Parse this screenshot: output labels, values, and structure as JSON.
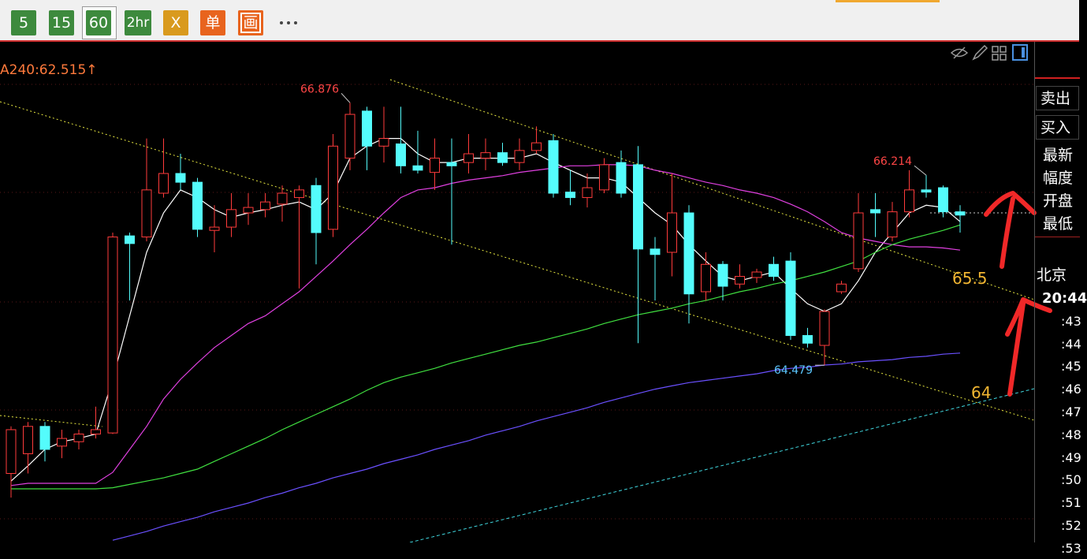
{
  "toolbar": {
    "buttons": [
      "5",
      "15",
      "60",
      "2hr",
      "X",
      "单",
      "画"
    ]
  },
  "indicator_label": "A240:62.515↑",
  "chart_data": {
    "type": "candlestick",
    "open": [
      63.49,
      63.67,
      63.92,
      63.74,
      63.78,
      63.85,
      63.86,
      65.66,
      65.65,
      66.05,
      66.23,
      66.15,
      65.71,
      65.74,
      65.87,
      65.9,
      65.95,
      66.01,
      66.12,
      65.72,
      66.37,
      66.8,
      66.48,
      66.5,
      66.3,
      66.24,
      66.33,
      66.33,
      66.37,
      66.42,
      66.33,
      66.44,
      66.53,
      66.06,
      66.01,
      66.08,
      66.33,
      66.31,
      65.54,
      65.51,
      65.87,
      65.15,
      65.4,
      65.22,
      65.28,
      65.4,
      65.43,
      64.75,
      64.66,
      65.15,
      65.36,
      65.9,
      65.65,
      65.88,
      66.08,
      66.1,
      65.88
    ],
    "high": [
      63.92,
      63.96,
      63.96,
      63.89,
      63.89,
      64.1,
      65.69,
      65.69,
      66.55,
      66.55,
      66.41,
      66.19,
      65.94,
      66.05,
      66.05,
      66.05,
      66.12,
      66.12,
      66.19,
      66.59,
      66.876,
      66.84,
      66.84,
      66.84,
      66.62,
      66.55,
      66.55,
      66.59,
      66.55,
      66.51,
      66.55,
      66.66,
      66.59,
      66.26,
      66.23,
      66.37,
      66.44,
      66.48,
      65.65,
      66.23,
      65.94,
      65.51,
      65.43,
      65.4,
      65.36,
      65.47,
      65.51,
      64.82,
      64.99,
      65.25,
      66.05,
      66.05,
      65.97,
      66.26,
      66.214,
      66.12,
      65.94
    ],
    "low": [
      63.27,
      63.49,
      63.6,
      63.63,
      63.71,
      63.81,
      63.85,
      65.07,
      65.61,
      66.01,
      66.08,
      65.65,
      65.51,
      65.65,
      65.76,
      65.83,
      65.79,
      65.18,
      65.4,
      65.65,
      66.26,
      66.26,
      66.33,
      66.23,
      66.23,
      66.08,
      65.58,
      66.23,
      66.26,
      66.3,
      66.26,
      66.41,
      66.01,
      65.94,
      65.92,
      66.05,
      66.01,
      64.68,
      65.07,
      65.29,
      64.86,
      65.07,
      65.07,
      65.18,
      65.23,
      65.25,
      64.71,
      64.64,
      64.479,
      65.13,
      65.33,
      65.65,
      65.61,
      65.83,
      66.01,
      65.83,
      65.69
    ],
    "close": [
      63.89,
      63.92,
      63.71,
      63.81,
      63.85,
      63.89,
      65.65,
      65.59,
      66.08,
      66.23,
      66.15,
      65.72,
      65.74,
      65.9,
      65.92,
      65.97,
      66.05,
      66.08,
      65.69,
      66.48,
      66.77,
      66.48,
      66.55,
      66.3,
      66.26,
      66.37,
      66.3,
      66.41,
      66.42,
      66.33,
      66.44,
      66.51,
      66.05,
      66.01,
      66.1,
      66.31,
      66.05,
      65.54,
      65.49,
      65.87,
      65.13,
      65.4,
      65.2,
      65.29,
      65.33,
      65.29,
      64.75,
      64.68,
      64.97,
      65.22,
      65.87,
      65.87,
      65.88,
      66.08,
      66.06,
      65.88,
      65.85
    ],
    "up_color": "#ff3b3b",
    "down_color": "#54fcfc",
    "ylim": [
      62.86,
      67.44
    ],
    "series": [
      {
        "color": "#ffffff",
        "values": [
          63.42,
          63.56,
          63.71,
          63.78,
          63.81,
          63.85,
          64.35,
          64.93,
          65.51,
          65.87,
          66.08,
          66.01,
          65.9,
          65.83,
          65.87,
          65.9,
          65.94,
          65.97,
          65.9,
          66.05,
          66.37,
          66.48,
          66.55,
          66.55,
          66.41,
          66.33,
          66.33,
          66.37,
          66.37,
          66.37,
          66.37,
          66.41,
          66.33,
          66.26,
          66.19,
          66.19,
          66.15,
          66.01,
          65.87,
          65.76,
          65.58,
          65.43,
          65.29,
          65.25,
          65.29,
          65.33,
          65.18,
          65.04,
          64.97,
          65.04,
          65.25,
          65.51,
          65.69,
          65.87,
          65.94,
          65.92,
          65.79
        ]
      },
      {
        "color": "#e040e0",
        "values": [
          63.38,
          63.4,
          63.4,
          63.4,
          63.4,
          63.4,
          63.5,
          63.71,
          63.92,
          64.17,
          64.35,
          64.5,
          64.64,
          64.75,
          64.86,
          64.93,
          65.04,
          65.15,
          65.29,
          65.43,
          65.58,
          65.72,
          65.87,
          66.01,
          66.08,
          66.1,
          66.14,
          66.17,
          66.19,
          66.21,
          66.24,
          66.26,
          66.28,
          66.3,
          66.3,
          66.31,
          66.31,
          66.3,
          66.26,
          66.23,
          66.19,
          66.15,
          66.12,
          66.08,
          66.05,
          66.01,
          65.95,
          65.88,
          65.79,
          65.69,
          65.64,
          65.61,
          65.58,
          65.56,
          65.56,
          65.55,
          65.53
        ]
      },
      {
        "color": "#40e040",
        "values": [
          63.35,
          63.35,
          63.35,
          63.35,
          63.35,
          63.35,
          63.36,
          63.39,
          63.42,
          63.45,
          63.49,
          63.53,
          63.6,
          63.67,
          63.74,
          63.81,
          63.89,
          63.96,
          64.03,
          64.1,
          64.17,
          64.25,
          64.32,
          64.37,
          64.41,
          64.45,
          64.5,
          64.54,
          64.58,
          64.62,
          64.66,
          64.69,
          64.73,
          64.77,
          64.81,
          64.86,
          64.9,
          64.94,
          64.97,
          65.0,
          65.04,
          65.07,
          65.11,
          65.15,
          65.18,
          65.22,
          65.25,
          65.29,
          65.33,
          65.38,
          65.43,
          65.51,
          65.58,
          65.63,
          65.67,
          65.71,
          65.76
        ]
      },
      {
        "color": "#6a50ff",
        "values": [
          null,
          null,
          null,
          null,
          null,
          null,
          62.88,
          62.92,
          62.96,
          63.01,
          63.05,
          63.09,
          63.14,
          63.18,
          63.22,
          63.27,
          63.31,
          63.36,
          63.4,
          63.45,
          63.49,
          63.53,
          63.58,
          63.62,
          63.66,
          63.71,
          63.75,
          63.79,
          63.84,
          63.88,
          63.92,
          63.97,
          64.01,
          64.05,
          64.09,
          64.14,
          64.18,
          64.22,
          64.26,
          64.29,
          64.32,
          64.34,
          64.36,
          64.38,
          64.4,
          64.43,
          64.45,
          64.46,
          64.48,
          64.49,
          64.51,
          64.52,
          64.53,
          64.55,
          64.56,
          64.58,
          64.59
        ]
      }
    ],
    "annotations": [
      {
        "text": "65.5",
        "color": "#f2b632"
      },
      {
        "text": "64",
        "color": "#f2b632"
      }
    ]
  },
  "side_panel": {
    "buttons": [
      "卖出",
      "买入"
    ],
    "fields": [
      "最新",
      "幅度",
      "开盘",
      "最低"
    ],
    "clock_label": "北京",
    "times": [
      "20:44",
      ":43",
      ":44",
      ":45",
      ":46",
      ":47",
      ":48",
      ":49",
      ":50",
      ":51",
      ":52",
      ":53"
    ]
  }
}
